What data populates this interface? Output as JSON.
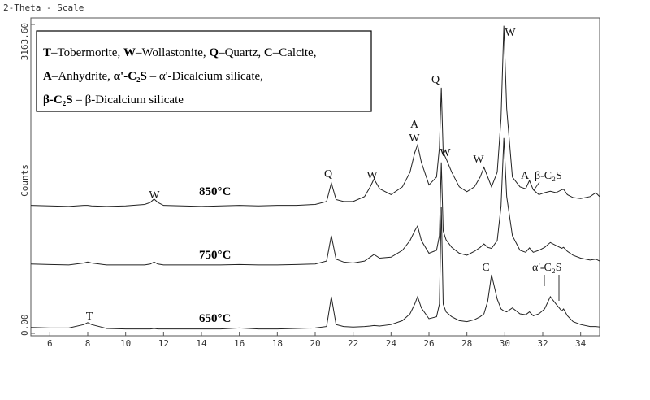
{
  "chart_data": {
    "type": "line",
    "title": "2-Theta - Scale",
    "y_label": "Counts",
    "x": [
      5,
      6,
      7,
      7.8,
      8,
      8.2,
      9,
      10,
      11,
      11.3,
      11.5,
      11.7,
      12,
      13,
      14,
      15,
      16,
      17,
      18,
      19,
      20,
      20.6,
      20.85,
      21.1,
      21.5,
      22,
      22.6,
      22.9,
      23.1,
      23.4,
      24,
      24.6,
      25,
      25.25,
      25.4,
      25.6,
      26,
      26.4,
      26.55,
      26.65,
      26.75,
      26.9,
      27.2,
      27.6,
      28,
      28.4,
      28.7,
      28.9,
      29.1,
      29.3,
      29.6,
      29.8,
      29.95,
      30.1,
      30.4,
      30.8,
      31.1,
      31.3,
      31.5,
      31.8,
      32.1,
      32.4,
      32.7,
      33,
      33.1,
      33.3,
      33.6,
      34,
      34.5,
      34.8,
      35
    ],
    "series": [
      {
        "name": "650°C",
        "color": "#222222",
        "values": [
          60,
          55,
          55,
          90,
          110,
          90,
          50,
          45,
          45,
          45,
          50,
          45,
          45,
          45,
          45,
          45,
          55,
          45,
          45,
          50,
          55,
          70,
          375,
          90,
          70,
          65,
          70,
          75,
          80,
          75,
          90,
          130,
          200,
          300,
          375,
          260,
          150,
          170,
          300,
          1290,
          300,
          220,
          170,
          130,
          120,
          140,
          170,
          200,
          330,
          600,
          350,
          250,
          230,
          220,
          260,
          200,
          190,
          220,
          180,
          200,
          250,
          375,
          300,
          230,
          250,
          180,
          120,
          90,
          70,
          70,
          65
        ]
      },
      {
        "name": "750°C",
        "color": "#222222",
        "values": [
          710,
          705,
          700,
          720,
          730,
          720,
          700,
          700,
          700,
          710,
          730,
          710,
          700,
          700,
          700,
          700,
          705,
          700,
          700,
          705,
          710,
          740,
          1000,
          760,
          730,
          720,
          740,
          780,
          808,
          770,
          780,
          850,
          950,
          1050,
          1100,
          950,
          820,
          850,
          1000,
          1750,
          1050,
          958,
          880,
          820,
          800,
          840,
          880,
          915,
          880,
          870,
          950,
          1300,
          2000,
          1400,
          1000,
          850,
          830,
          875,
          830,
          850,
          880,
          930,
          900,
          870,
          880,
          840,
          800,
          770,
          750,
          760,
          740
        ]
      },
      {
        "name": "850°C",
        "color": "#222222",
        "values": [
          1310,
          1305,
          1300,
          1310,
          1310,
          1305,
          1300,
          1305,
          1320,
          1340,
          1375,
          1340,
          1310,
          1305,
          1300,
          1305,
          1310,
          1305,
          1310,
          1310,
          1320,
          1350,
          1540,
          1370,
          1350,
          1350,
          1400,
          1500,
          1580,
          1480,
          1420,
          1500,
          1650,
          1850,
          1930,
          1750,
          1520,
          1600,
          1900,
          2515,
          1850,
          1790,
          1650,
          1500,
          1450,
          1500,
          1600,
          1700,
          1600,
          1500,
          1650,
          2200,
          3150,
          2300,
          1600,
          1500,
          1480,
          1565,
          1470,
          1420,
          1440,
          1455,
          1440,
          1470,
          1475,
          1420,
          1390,
          1380,
          1400,
          1440,
          1400
        ]
      }
    ],
    "xlim": [
      5,
      35
    ],
    "ylim": [
      0,
      3163.6
    ],
    "xticks": [
      6,
      8,
      10,
      12,
      14,
      16,
      18,
      20,
      22,
      24,
      26,
      28,
      30,
      32,
      34
    ],
    "yticks": [
      {
        "value": 0,
        "label": "0.00"
      },
      {
        "value": 3163.6,
        "label": "3163.60"
      }
    ],
    "annotations": [
      "W",
      "Q",
      "A",
      "W",
      "W",
      "W",
      "Q",
      "W",
      "W",
      "A",
      "β-C₂S",
      "C",
      "α'-C₂S",
      "T"
    ],
    "legend_lines": [
      [
        {
          "bold": "T",
          "text": "–Tobermorite, "
        },
        {
          "bold": "W",
          "text": "–Wollastonite, "
        },
        {
          "bold": "Q",
          "text": "–Quartz, "
        },
        {
          "bold": "C",
          "text": "–Calcite,"
        }
      ],
      [
        {
          "bold": "A",
          "text": "–Anhydrite, "
        },
        {
          "bold": "α'-C₂S",
          "text": " – α'-Dicalcium silicate,"
        }
      ],
      [
        {
          "bold": "β-C₂S",
          "text": " – β-Dicalcium silicate"
        }
      ]
    ]
  }
}
